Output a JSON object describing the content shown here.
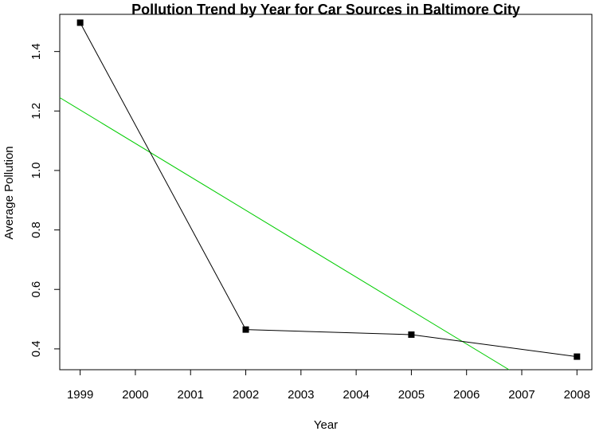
{
  "chart_data": {
    "type": "line",
    "title": "Pollution Trend by Year for Car Sources in Baltimore City",
    "xlabel": "Year",
    "ylabel": "Average Pollution",
    "xlim": [
      1998.63,
      2008.27
    ],
    "ylim": [
      0.33,
      1.525
    ],
    "x_ticks": [
      1999,
      2000,
      2001,
      2002,
      2003,
      2004,
      2005,
      2006,
      2007,
      2008
    ],
    "y_ticks": [
      0.4,
      0.6,
      0.8,
      1.0,
      1.2,
      1.4
    ],
    "series": [
      {
        "x": [
          1999,
          2002,
          2005,
          2008
        ],
        "y": [
          1.497,
          0.465,
          0.448,
          0.374
        ],
        "color": "#000000",
        "marker": "square"
      }
    ],
    "trend_line": {
      "x": [
        1998.63,
        2006.77
      ],
      "y": [
        1.245,
        0.33
      ],
      "color": "#00cc00"
    },
    "grid": false,
    "legend": "none"
  }
}
